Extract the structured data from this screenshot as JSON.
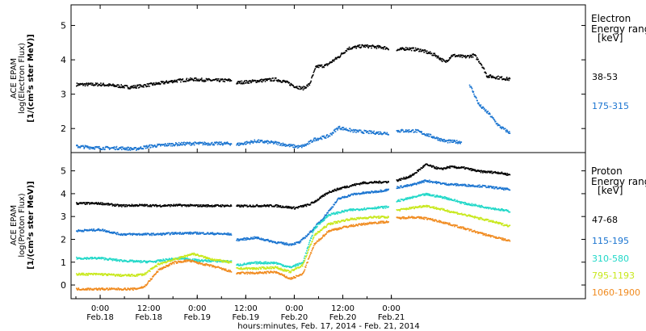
{
  "chart_data": [
    {
      "type": "scatter",
      "instrument_label": "ACE EPAM",
      "ylabel": "log(Electron Flux)",
      "yunit": "[1/(cm²s ster MeV)]",
      "ylim": [
        1.3,
        5.6
      ],
      "yticks": [
        2,
        3,
        4,
        5
      ],
      "legend_title": [
        "Electron",
        "Energy ranges",
        "[keV]"
      ],
      "series": [
        {
          "name": "38-53",
          "color": "#000000",
          "points": [
            [
              -0.25,
              3.3
            ],
            [
              0.0,
              3.3
            ],
            [
              0.2,
              3.25
            ],
            [
              0.3,
              3.22
            ],
            [
              0.4,
              3.25
            ],
            [
              0.6,
              3.33
            ],
            [
              0.75,
              3.4
            ],
            [
              0.95,
              3.45
            ],
            [
              1.15,
              3.42
            ],
            [
              1.35,
              3.42
            ],
            null,
            [
              1.4,
              3.35
            ],
            [
              1.6,
              3.4
            ],
            [
              1.8,
              3.45
            ],
            [
              1.9,
              3.38
            ],
            [
              2.0,
              3.25
            ],
            [
              2.08,
              3.18
            ],
            [
              2.15,
              3.3
            ],
            [
              2.22,
              3.82
            ],
            [
              2.32,
              3.85
            ],
            [
              2.45,
              4.1
            ],
            [
              2.55,
              4.35
            ],
            [
              2.7,
              4.42
            ],
            [
              2.9,
              4.38
            ],
            [
              2.97,
              4.35
            ],
            null,
            [
              3.05,
              4.3
            ],
            [
              3.15,
              4.35
            ],
            [
              3.3,
              4.3
            ],
            [
              3.45,
              4.15
            ],
            [
              3.55,
              3.95
            ],
            [
              3.62,
              4.15
            ],
            [
              3.75,
              4.1
            ],
            [
              3.85,
              4.15
            ],
            [
              3.92,
              3.9
            ],
            [
              3.98,
              3.55
            ],
            [
              4.1,
              3.5
            ],
            [
              4.22,
              3.45
            ]
          ]
        },
        {
          "name": "175-315",
          "color": "#1a74d0",
          "points": [
            [
              -0.25,
              1.5
            ],
            [
              0.0,
              1.45
            ],
            [
              0.2,
              1.45
            ],
            [
              0.35,
              1.42
            ],
            [
              0.5,
              1.5
            ],
            [
              0.7,
              1.55
            ],
            [
              0.9,
              1.58
            ],
            [
              1.1,
              1.58
            ],
            [
              1.35,
              1.58
            ],
            null,
            [
              1.4,
              1.55
            ],
            [
              1.6,
              1.65
            ],
            [
              1.8,
              1.6
            ],
            [
              1.95,
              1.52
            ],
            [
              2.05,
              1.48
            ],
            [
              2.12,
              1.55
            ],
            [
              2.2,
              1.7
            ],
            [
              2.35,
              1.8
            ],
            [
              2.45,
              2.05
            ],
            [
              2.6,
              1.95
            ],
            [
              2.8,
              1.9
            ],
            [
              2.97,
              1.88
            ],
            null,
            [
              3.05,
              1.95
            ],
            [
              3.25,
              1.95
            ],
            [
              3.4,
              1.8
            ],
            [
              3.55,
              1.65
            ],
            [
              3.72,
              1.62
            ],
            null,
            [
              3.8,
              3.3
            ],
            [
              3.85,
              3.0
            ],
            [
              3.9,
              2.7
            ],
            [
              4.0,
              2.45
            ],
            [
              4.1,
              2.1
            ],
            [
              4.22,
              1.88
            ]
          ]
        }
      ]
    },
    {
      "type": "scatter",
      "instrument_label": "ACE EPAM",
      "ylabel": "log(Proton Flux)",
      "yunit": "[1/(cm²s ster MeV)]",
      "ylim": [
        -0.6,
        5.8
      ],
      "yticks": [
        0,
        1,
        2,
        3,
        4,
        5
      ],
      "legend_title": [
        "Proton",
        "Energy ranges",
        "[keV]"
      ],
      "xlabel": "hours:minutes, Feb. 17, 2014 - Feb. 21, 2014",
      "xlim": [
        -0.3,
        5.0
      ],
      "xticks": [
        {
          "x": 0.0,
          "time": "0:00",
          "date": "Feb.18"
        },
        {
          "x": 0.5,
          "time": "12:00",
          "date": "Feb.18"
        },
        {
          "x": 1.0,
          "time": "0:00",
          "date": "Feb.19"
        },
        {
          "x": 1.5,
          "time": "12:00",
          "date": "Feb.19"
        },
        {
          "x": 2.0,
          "time": "0:00",
          "date": "Feb.20"
        },
        {
          "x": 2.5,
          "time": "12:00",
          "date": "Feb.20"
        },
        {
          "x": 3.0,
          "time": "0:00",
          "date": "Feb.21"
        }
      ],
      "series": [
        {
          "name": "47-68",
          "color": "#000000",
          "points": [
            [
              -0.25,
              3.6
            ],
            [
              0.0,
              3.6
            ],
            [
              0.2,
              3.5
            ],
            [
              0.4,
              3.52
            ],
            [
              0.6,
              3.5
            ],
            [
              0.8,
              3.52
            ],
            [
              1.0,
              3.5
            ],
            [
              1.35,
              3.5
            ],
            null,
            [
              1.4,
              3.48
            ],
            [
              1.6,
              3.5
            ],
            [
              1.8,
              3.5
            ],
            [
              2.0,
              3.4
            ],
            [
              2.15,
              3.55
            ],
            [
              2.25,
              3.8
            ],
            [
              2.35,
              4.1
            ],
            [
              2.5,
              4.3
            ],
            [
              2.7,
              4.5
            ],
            [
              2.97,
              4.55
            ],
            null,
            [
              3.05,
              4.6
            ],
            [
              3.2,
              4.8
            ],
            [
              3.35,
              5.3
            ],
            [
              3.5,
              5.1
            ],
            [
              3.6,
              5.2
            ],
            [
              3.75,
              5.15
            ],
            [
              3.9,
              5.0
            ],
            [
              4.1,
              4.95
            ],
            [
              4.22,
              4.85
            ]
          ]
        },
        {
          "name": "115-195",
          "color": "#1a74d0",
          "points": [
            [
              -0.25,
              2.4
            ],
            [
              0.0,
              2.45
            ],
            [
              0.2,
              2.25
            ],
            [
              0.4,
              2.25
            ],
            [
              0.6,
              2.25
            ],
            [
              0.8,
              2.3
            ],
            [
              1.0,
              2.3
            ],
            [
              1.35,
              2.25
            ],
            null,
            [
              1.4,
              2.0
            ],
            [
              1.6,
              2.1
            ],
            [
              1.8,
              1.9
            ],
            [
              1.95,
              1.8
            ],
            [
              2.05,
              1.9
            ],
            [
              2.15,
              2.3
            ],
            [
              2.3,
              3.0
            ],
            [
              2.45,
              3.8
            ],
            [
              2.6,
              4.0
            ],
            [
              2.8,
              4.1
            ],
            [
              2.97,
              4.2
            ],
            null,
            [
              3.05,
              4.3
            ],
            [
              3.2,
              4.4
            ],
            [
              3.35,
              4.6
            ],
            [
              3.55,
              4.45
            ],
            [
              3.75,
              4.4
            ],
            [
              3.95,
              4.35
            ],
            [
              4.22,
              4.2
            ]
          ]
        },
        {
          "name": "310-580",
          "color": "#20d8c8",
          "points": [
            [
              -0.25,
              1.2
            ],
            [
              0.0,
              1.2
            ],
            [
              0.2,
              1.1
            ],
            [
              0.4,
              1.05
            ],
            [
              0.55,
              1.05
            ],
            [
              0.7,
              1.15
            ],
            [
              0.85,
              1.2
            ],
            [
              1.0,
              1.1
            ],
            [
              1.35,
              1.05
            ],
            null,
            [
              1.4,
              0.9
            ],
            [
              1.6,
              1.0
            ],
            [
              1.8,
              1.0
            ],
            [
              1.95,
              0.8
            ],
            [
              2.08,
              1.0
            ],
            [
              2.2,
              2.5
            ],
            [
              2.35,
              3.1
            ],
            [
              2.55,
              3.3
            ],
            [
              2.8,
              3.4
            ],
            [
              2.97,
              3.45
            ],
            null,
            [
              3.05,
              3.7
            ],
            [
              3.2,
              3.85
            ],
            [
              3.35,
              4.0
            ],
            [
              3.55,
              3.85
            ],
            [
              3.75,
              3.6
            ],
            [
              3.95,
              3.45
            ],
            [
              4.22,
              3.25
            ]
          ]
        },
        {
          "name": "795-1193",
          "color": "#c8e81c",
          "points": [
            [
              -0.25,
              0.5
            ],
            [
              0.0,
              0.5
            ],
            [
              0.2,
              0.45
            ],
            [
              0.35,
              0.45
            ],
            [
              0.45,
              0.5
            ],
            [
              0.6,
              0.95
            ],
            [
              0.8,
              1.2
            ],
            [
              0.95,
              1.4
            ],
            [
              1.1,
              1.2
            ],
            [
              1.35,
              1.0
            ],
            null,
            [
              1.4,
              0.75
            ],
            [
              1.6,
              0.75
            ],
            [
              1.8,
              0.8
            ],
            [
              1.95,
              0.6
            ],
            [
              2.08,
              0.9
            ],
            [
              2.2,
              2.2
            ],
            [
              2.35,
              2.7
            ],
            [
              2.55,
              2.9
            ],
            [
              2.8,
              3.0
            ],
            [
              2.97,
              3.0
            ],
            null,
            [
              3.05,
              3.3
            ],
            [
              3.2,
              3.4
            ],
            [
              3.35,
              3.5
            ],
            [
              3.55,
              3.3
            ],
            [
              3.75,
              3.1
            ],
            [
              3.95,
              2.9
            ],
            [
              4.22,
              2.6
            ]
          ]
        },
        {
          "name": "1060-1900",
          "color": "#f08a1e",
          "points": [
            [
              -0.25,
              -0.15
            ],
            [
              0.0,
              -0.15
            ],
            [
              0.2,
              -0.15
            ],
            [
              0.35,
              -0.15
            ],
            [
              0.45,
              -0.05
            ],
            [
              0.6,
              0.7
            ],
            [
              0.75,
              1.0
            ],
            [
              0.9,
              1.1
            ],
            [
              1.0,
              1.0
            ],
            [
              1.2,
              0.8
            ],
            [
              1.35,
              0.6
            ],
            null,
            [
              1.4,
              0.55
            ],
            [
              1.6,
              0.55
            ],
            [
              1.8,
              0.6
            ],
            [
              1.95,
              0.3
            ],
            [
              2.08,
              0.5
            ],
            [
              2.2,
              1.8
            ],
            [
              2.35,
              2.4
            ],
            [
              2.55,
              2.6
            ],
            [
              2.8,
              2.75
            ],
            [
              2.97,
              2.8
            ],
            null,
            [
              3.05,
              2.95
            ],
            [
              3.2,
              3.0
            ],
            [
              3.35,
              2.95
            ],
            [
              3.55,
              2.75
            ],
            [
              3.75,
              2.5
            ],
            [
              3.95,
              2.25
            ],
            [
              4.22,
              1.95
            ]
          ]
        }
      ]
    }
  ]
}
